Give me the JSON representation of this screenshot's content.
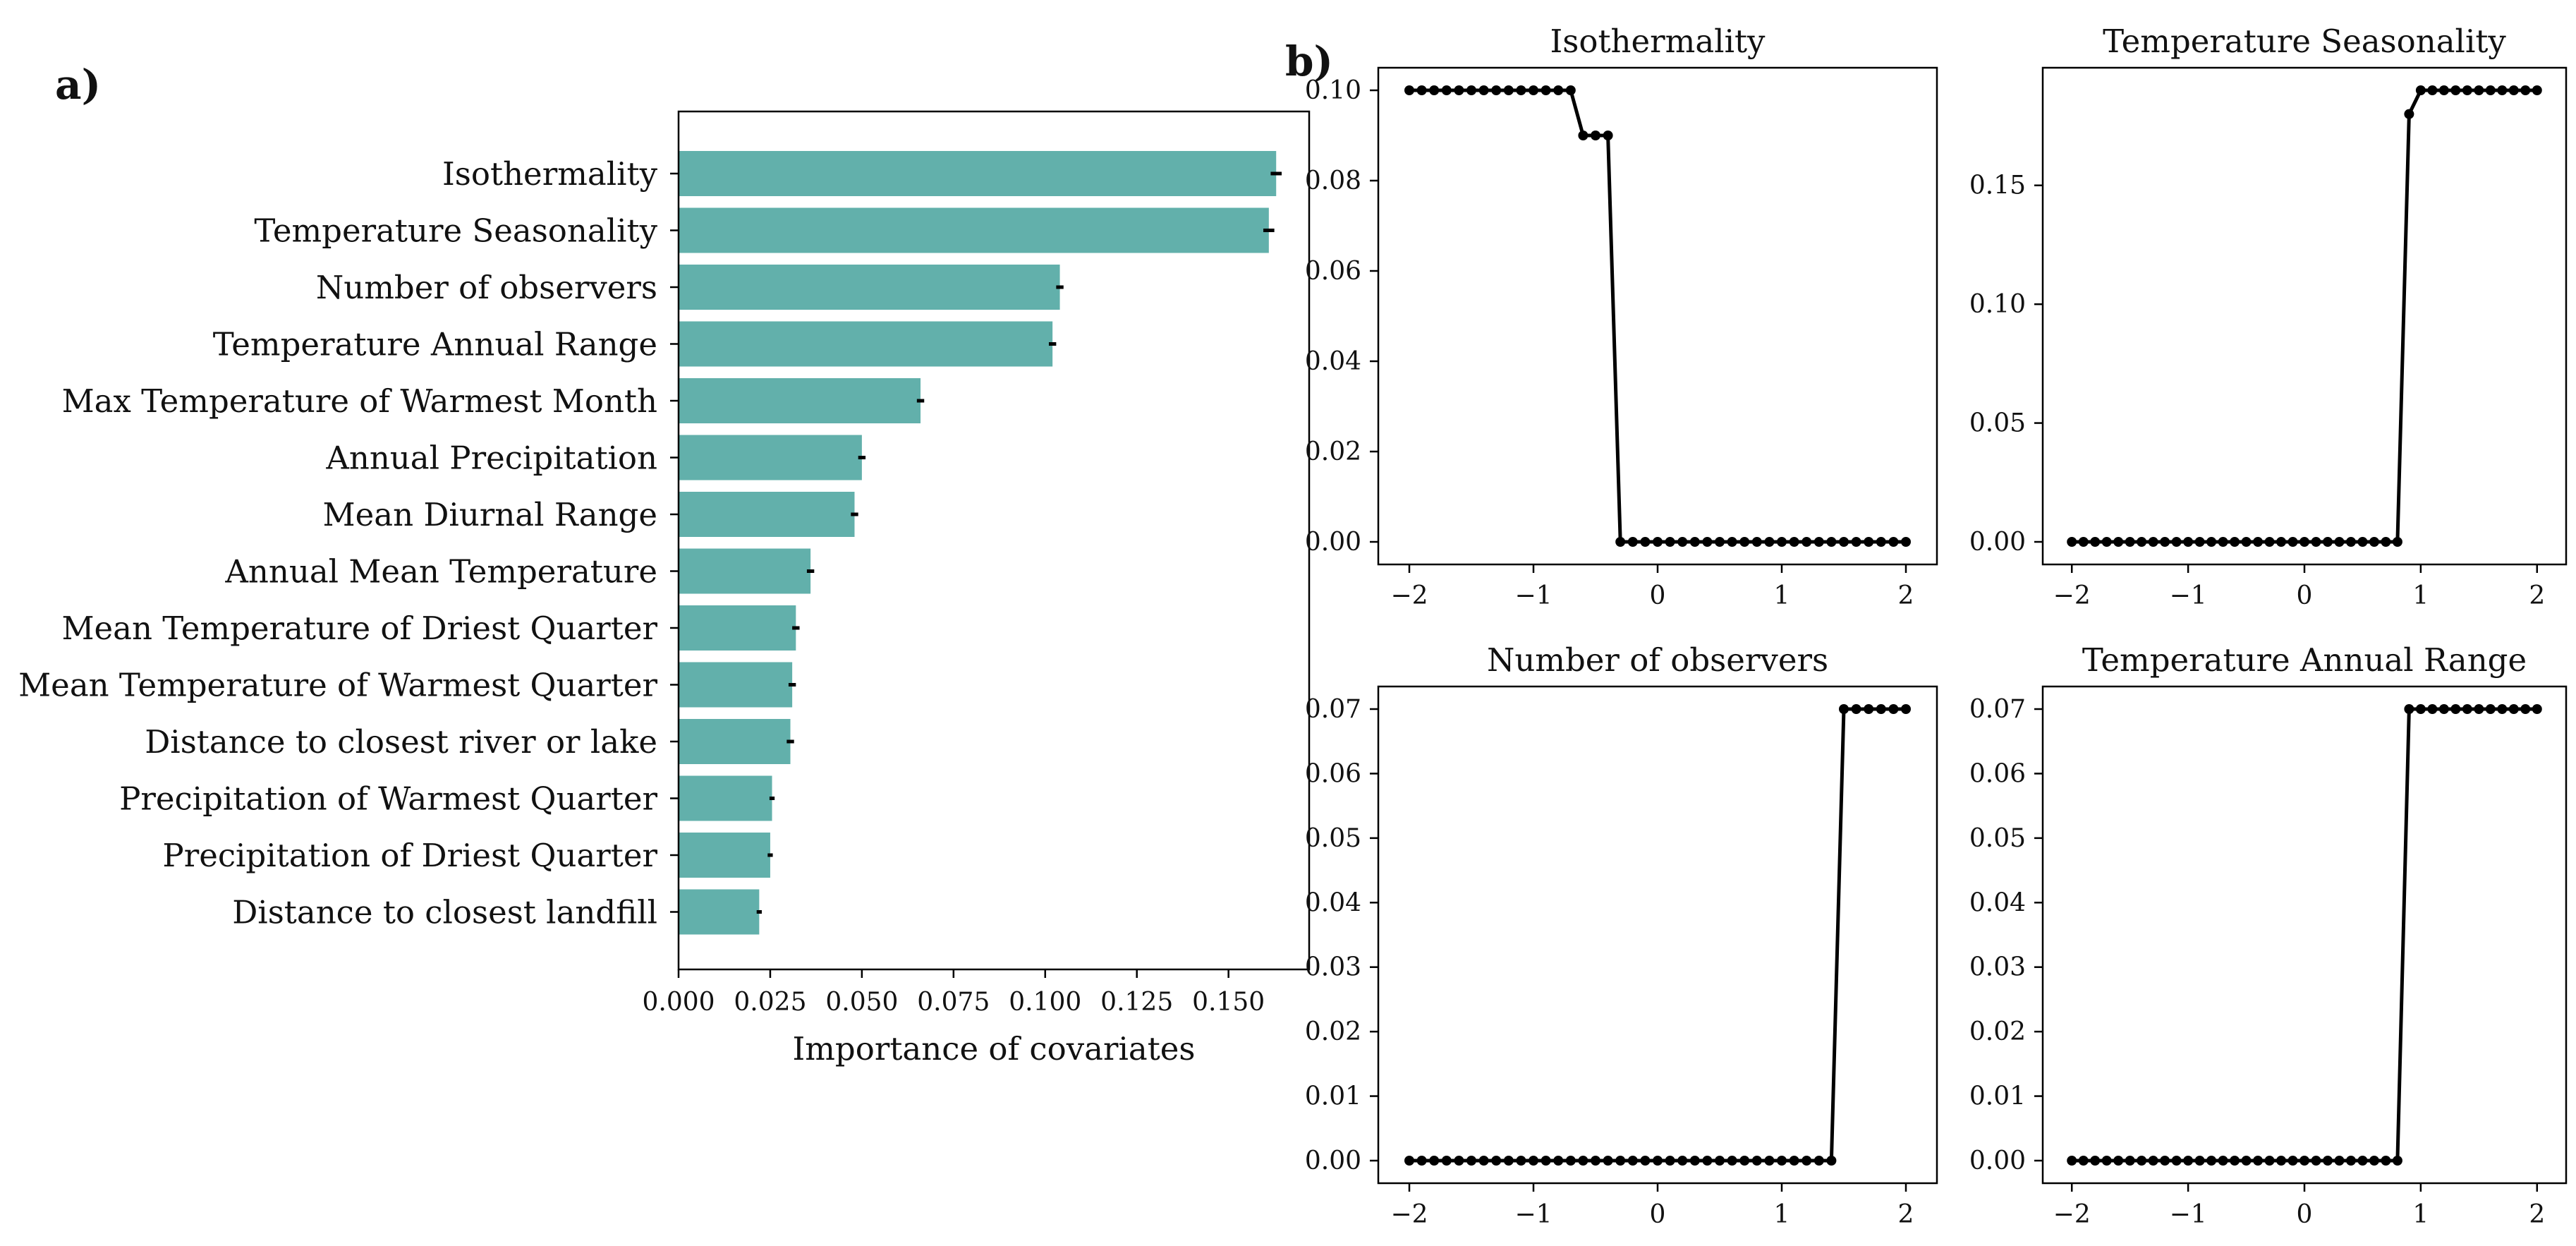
{
  "figure": {
    "label_a": "a)",
    "label_b": "b)"
  },
  "colors": {
    "bar": "#62b0ab",
    "line": "#000000",
    "axis": "#000000",
    "error_bar": "#000000"
  },
  "chart_data": [
    {
      "type": "bar",
      "orientation": "horizontal",
      "title": "",
      "xlabel": "Importance of covariates",
      "ylabel": "",
      "xlim": [
        0.0,
        0.172
      ],
      "xticks": [
        "0.000",
        "0.025",
        "0.050",
        "0.075",
        "0.100",
        "0.125",
        "0.150"
      ],
      "xtick_values": [
        0.0,
        0.025,
        0.05,
        0.075,
        0.1,
        0.125,
        0.15
      ],
      "categories": [
        "Isothermality",
        "Temperature Seasonality",
        "Number of observers",
        "Temperature Annual Range",
        "Max Temperature of Warmest Month",
        "Annual Precipitation",
        "Mean Diurnal Range",
        "Annual Mean Temperature",
        "Mean Temperature of Driest Quarter",
        "Mean Temperature of Warmest Quarter",
        "Distance to closest river or lake",
        "Precipitation of Warmest Quarter",
        "Precipitation of Driest Quarter",
        "Distance to closest landfill"
      ],
      "values": [
        0.163,
        0.161,
        0.104,
        0.102,
        0.066,
        0.05,
        0.048,
        0.036,
        0.032,
        0.031,
        0.0305,
        0.0255,
        0.025,
        0.022
      ],
      "errors": [
        0.0015,
        0.0015,
        0.001,
        0.001,
        0.001,
        0.001,
        0.001,
        0.001,
        0.001,
        0.001,
        0.001,
        0.0007,
        0.0007,
        0.0007
      ],
      "grid": false,
      "legend": "none"
    },
    {
      "type": "line",
      "title": "Isothermality",
      "xlim": [
        -2.25,
        2.25
      ],
      "ylim": [
        -0.005,
        0.105
      ],
      "xticks": [
        "−2",
        "−1",
        "0",
        "1",
        "2"
      ],
      "xtick_values": [
        -2,
        -1,
        0,
        1,
        2
      ],
      "yticks": [
        "0.00",
        "0.02",
        "0.04",
        "0.06",
        "0.08",
        "0.10"
      ],
      "ytick_values": [
        0.0,
        0.02,
        0.04,
        0.06,
        0.08,
        0.1
      ],
      "x": [
        -2.0,
        -1.9,
        -1.8,
        -1.7,
        -1.6,
        -1.5,
        -1.4,
        -1.3,
        -1.2,
        -1.1,
        -1.0,
        -0.9,
        -0.8,
        -0.7,
        -0.6,
        -0.5,
        -0.4,
        -0.3,
        -0.2,
        -0.1,
        0.0,
        0.1,
        0.2,
        0.3,
        0.4,
        0.5,
        0.6,
        0.7,
        0.8,
        0.9,
        1.0,
        1.1,
        1.2,
        1.3,
        1.4,
        1.5,
        1.6,
        1.7,
        1.8,
        1.9,
        2.0
      ],
      "y": [
        0.1,
        0.1,
        0.1,
        0.1,
        0.1,
        0.1,
        0.1,
        0.1,
        0.1,
        0.1,
        0.1,
        0.1,
        0.1,
        0.1,
        0.09,
        0.09,
        0.09,
        0.0,
        0.0,
        0.0,
        0.0,
        0.0,
        0.0,
        0.0,
        0.0,
        0.0,
        0.0,
        0.0,
        0.0,
        0.0,
        0.0,
        0.0,
        0.0,
        0.0,
        0.0,
        0.0,
        0.0,
        0.0,
        0.0,
        0.0,
        0.0
      ],
      "grid": false,
      "legend": "none"
    },
    {
      "type": "line",
      "title": "Temperature Seasonality",
      "xlim": [
        -2.25,
        2.25
      ],
      "ylim": [
        -0.0095,
        0.1995
      ],
      "xticks": [
        "−2",
        "−1",
        "0",
        "1",
        "2"
      ],
      "xtick_values": [
        -2,
        -1,
        0,
        1,
        2
      ],
      "yticks": [
        "0.00",
        "0.05",
        "0.10",
        "0.15"
      ],
      "ytick_values": [
        0.0,
        0.05,
        0.1,
        0.15
      ],
      "x": [
        -2.0,
        -1.9,
        -1.8,
        -1.7,
        -1.6,
        -1.5,
        -1.4,
        -1.3,
        -1.2,
        -1.1,
        -1.0,
        -0.9,
        -0.8,
        -0.7,
        -0.6,
        -0.5,
        -0.4,
        -0.3,
        -0.2,
        -0.1,
        0.0,
        0.1,
        0.2,
        0.3,
        0.4,
        0.5,
        0.6,
        0.7,
        0.8,
        0.9,
        1.0,
        1.1,
        1.2,
        1.3,
        1.4,
        1.5,
        1.6,
        1.7,
        1.8,
        1.9,
        2.0
      ],
      "y": [
        0.0,
        0.0,
        0.0,
        0.0,
        0.0,
        0.0,
        0.0,
        0.0,
        0.0,
        0.0,
        0.0,
        0.0,
        0.0,
        0.0,
        0.0,
        0.0,
        0.0,
        0.0,
        0.0,
        0.0,
        0.0,
        0.0,
        0.0,
        0.0,
        0.0,
        0.0,
        0.0,
        0.0,
        0.0,
        0.18,
        0.19,
        0.19,
        0.19,
        0.19,
        0.19,
        0.19,
        0.19,
        0.19,
        0.19,
        0.19,
        0.19
      ],
      "grid": false,
      "legend": "none"
    },
    {
      "type": "line",
      "title": "Number of observers",
      "xlim": [
        -2.25,
        2.25
      ],
      "ylim": [
        -0.0035,
        0.0735
      ],
      "xticks": [
        "−2",
        "−1",
        "0",
        "1",
        "2"
      ],
      "xtick_values": [
        -2,
        -1,
        0,
        1,
        2
      ],
      "yticks": [
        "0.00",
        "0.01",
        "0.02",
        "0.03",
        "0.04",
        "0.05",
        "0.06",
        "0.07"
      ],
      "ytick_values": [
        0.0,
        0.01,
        0.02,
        0.03,
        0.04,
        0.05,
        0.06,
        0.07
      ],
      "x": [
        -2.0,
        -1.9,
        -1.8,
        -1.7,
        -1.6,
        -1.5,
        -1.4,
        -1.3,
        -1.2,
        -1.1,
        -1.0,
        -0.9,
        -0.8,
        -0.7,
        -0.6,
        -0.5,
        -0.4,
        -0.3,
        -0.2,
        -0.1,
        0.0,
        0.1,
        0.2,
        0.3,
        0.4,
        0.5,
        0.6,
        0.7,
        0.8,
        0.9,
        1.0,
        1.1,
        1.2,
        1.3,
        1.4,
        1.5,
        1.6,
        1.7,
        1.8,
        1.9,
        2.0
      ],
      "y": [
        0.0,
        0.0,
        0.0,
        0.0,
        0.0,
        0.0,
        0.0,
        0.0,
        0.0,
        0.0,
        0.0,
        0.0,
        0.0,
        0.0,
        0.0,
        0.0,
        0.0,
        0.0,
        0.0,
        0.0,
        0.0,
        0.0,
        0.0,
        0.0,
        0.0,
        0.0,
        0.0,
        0.0,
        0.0,
        0.0,
        0.0,
        0.0,
        0.0,
        0.0,
        0.0,
        0.07,
        0.07,
        0.07,
        0.07,
        0.07,
        0.07
      ],
      "grid": false,
      "legend": "none"
    },
    {
      "type": "line",
      "title": "Temperature Annual Range",
      "xlim": [
        -2.25,
        2.25
      ],
      "ylim": [
        -0.0035,
        0.0735
      ],
      "xticks": [
        "−2",
        "−1",
        "0",
        "1",
        "2"
      ],
      "xtick_values": [
        -2,
        -1,
        0,
        1,
        2
      ],
      "yticks": [
        "0.00",
        "0.01",
        "0.02",
        "0.03",
        "0.04",
        "0.05",
        "0.06",
        "0.07"
      ],
      "ytick_values": [
        0.0,
        0.01,
        0.02,
        0.03,
        0.04,
        0.05,
        0.06,
        0.07
      ],
      "x": [
        -2.0,
        -1.9,
        -1.8,
        -1.7,
        -1.6,
        -1.5,
        -1.4,
        -1.3,
        -1.2,
        -1.1,
        -1.0,
        -0.9,
        -0.8,
        -0.7,
        -0.6,
        -0.5,
        -0.4,
        -0.3,
        -0.2,
        -0.1,
        0.0,
        0.1,
        0.2,
        0.3,
        0.4,
        0.5,
        0.6,
        0.7,
        0.8,
        0.9,
        1.0,
        1.1,
        1.2,
        1.3,
        1.4,
        1.5,
        1.6,
        1.7,
        1.8,
        1.9,
        2.0
      ],
      "y": [
        0.0,
        0.0,
        0.0,
        0.0,
        0.0,
        0.0,
        0.0,
        0.0,
        0.0,
        0.0,
        0.0,
        0.0,
        0.0,
        0.0,
        0.0,
        0.0,
        0.0,
        0.0,
        0.0,
        0.0,
        0.0,
        0.0,
        0.0,
        0.0,
        0.0,
        0.0,
        0.0,
        0.0,
        0.0,
        0.07,
        0.07,
        0.07,
        0.07,
        0.07,
        0.07,
        0.07,
        0.07,
        0.07,
        0.07,
        0.07,
        0.07
      ],
      "grid": false,
      "legend": "none"
    }
  ]
}
